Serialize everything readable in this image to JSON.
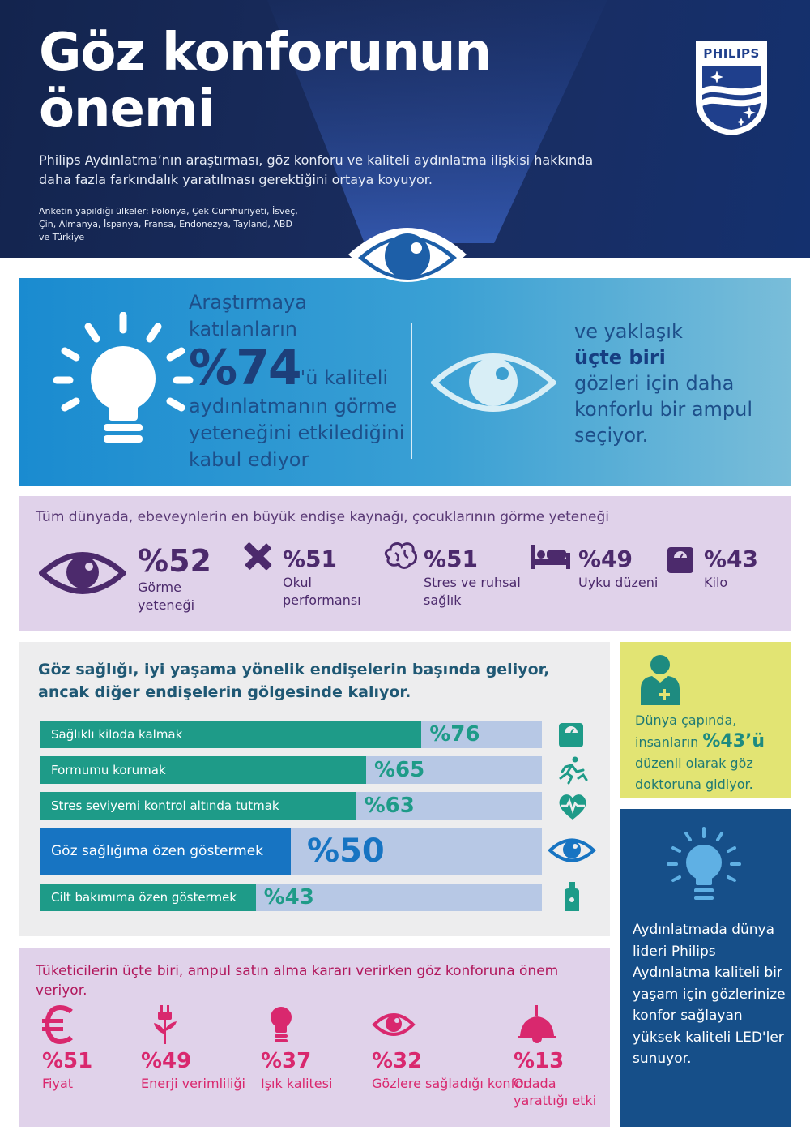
{
  "header": {
    "title_line1": "Göz konforunun",
    "title_line2": "önemi",
    "subtitle": "Philips Aydınlatma’nın araştırması, göz konforu ve kaliteli aydınlatma ilişkisi hakkında daha fazla farkındalık yaratılması gerektiğini ortaya koyuyor.",
    "countries": "Anketin yapıldığı ülkeler: Polonya, Çek Cumhuriyeti, İsveç, Çin, Almanya, İspanya, Fransa, Endonezya, Tayland, ABD ve Türkiye",
    "logo_text": "PHILIPS"
  },
  "panel1": {
    "left_intro": "Araştırmaya katılanların",
    "left_big": "%74",
    "left_rest": "'ü kaliteli aydınlatmanın görme yeteneğini etkilediğini kabul ediyor",
    "right_pre": "ve yaklaşık",
    "right_bold": "üçte biri",
    "right_post": "gözleri için daha konforlu bir ampul seçiyor."
  },
  "panel2": {
    "heading": "Tüm dünyada, ebeveynlerin en büyük endişe kaynağı, çocuklarının görme yeteneği",
    "stats": [
      {
        "value": "%52",
        "label": "Görme yeteneği",
        "icon": "eye-icon"
      },
      {
        "value": "%51",
        "label": "Okul performansı",
        "icon": "pencil-ruler-icon"
      },
      {
        "value": "%51",
        "label": "Stres ve ruhsal sağlık",
        "icon": "brain-icon"
      },
      {
        "value": "%49",
        "label": "Uyku düzeni",
        "icon": "bed-icon"
      },
      {
        "value": "%43",
        "label": "Kilo",
        "icon": "scale-icon"
      }
    ]
  },
  "panel3": {
    "heading": "Göz sağlığı, iyi yaşama yönelik endişelerin başında geliyor, ancak diğer endişelerin gölgesinde kalıyor.",
    "bars": [
      {
        "label": "Sağlıklı kiloda kalmak",
        "value_text": "%76",
        "value": 76,
        "icon": "scale-icon"
      },
      {
        "label": "Formumu korumak",
        "value_text": "%65",
        "value": 65,
        "icon": "running-icon"
      },
      {
        "label": "Stres seviyemi kontrol altında tutmak",
        "value_text": "%63",
        "value": 63,
        "icon": "heart-pulse-icon"
      },
      {
        "label": "Göz sağlığıma özen göstermek",
        "value_text": "%50",
        "value": 50,
        "icon": "eye-icon"
      },
      {
        "label": "Cilt bakımıma özen göstermek",
        "value_text": "%43",
        "value": 43,
        "icon": "spray-bottle-icon"
      }
    ]
  },
  "panel4": {
    "heading": "Tüketicilerin üçte biri, ampul satın alma kararı verirken göz konforuna önem veriyor.",
    "stats": [
      {
        "value": "%51",
        "label": "Fiyat",
        "icon": "euro-icon"
      },
      {
        "value": "%49",
        "label": "Enerji verimliliği",
        "icon": "plug-flower-icon"
      },
      {
        "value": "%37",
        "label": "Işık kalitesi",
        "icon": "bulb-icon"
      },
      {
        "value": "%32",
        "label": "Gözlere sağladığı konfor",
        "icon": "eye-icon"
      },
      {
        "value": "%13",
        "label": "Odada yarattığı etki",
        "icon": "pendant-lamp-icon"
      }
    ]
  },
  "side_green": {
    "text_pre": "Dünya çapında, insanların",
    "text_bold": "%43’ü",
    "text_post": "düzenli olarak göz doktoruna gidiyor."
  },
  "side_blue": {
    "text": "Aydınlatmada dünya lideri Philips Aydınlatma kaliteli bir yaşam için gözlerinize konfor sağlayan yüksek kaliteli LED'ler sunuyor."
  },
  "colors": {
    "header_bg": "#1a2d60",
    "panel1_blue": "#1a8bd0",
    "purple_bg": "#e0d2ea",
    "teal": "#1e9b88",
    "eye_blue": "#1774c2",
    "magenta": "#d9286e",
    "lime": "#e2e473",
    "navy": "#164f89"
  }
}
